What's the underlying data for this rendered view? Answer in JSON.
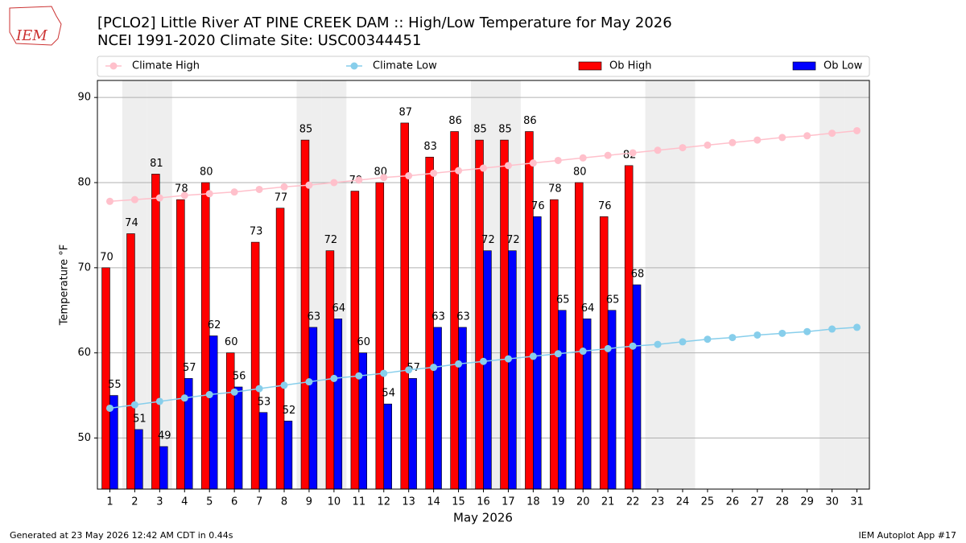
{
  "logo_text": "IEM",
  "footer_left": "Generated at 23 May 2026 12:42 AM CDT in 0.44s",
  "footer_right": "IEM Autoplot App #17",
  "chart_data": {
    "type": "bar",
    "title": "[PCLO2] Little River  AT PINE CREEK DAM :: High/Low Temperature for May 2026",
    "subtitle": "NCEI 1991-2020 Climate Site: USC00344451",
    "xlabel": "May 2026",
    "ylabel": "Temperature °F",
    "x": [
      1,
      2,
      3,
      4,
      5,
      6,
      7,
      8,
      9,
      10,
      11,
      12,
      13,
      14,
      15,
      16,
      17,
      18,
      19,
      20,
      21,
      22,
      23,
      24,
      25,
      26,
      27,
      28,
      29,
      30,
      31
    ],
    "xlim": [
      0.5,
      31.5
    ],
    "xticks": [
      1,
      2,
      3,
      4,
      5,
      6,
      7,
      8,
      9,
      10,
      11,
      12,
      13,
      14,
      15,
      16,
      17,
      18,
      19,
      20,
      21,
      22,
      23,
      24,
      25,
      26,
      27,
      28,
      29,
      30,
      31
    ],
    "ylim": [
      44,
      92
    ],
    "yticks": [
      50,
      60,
      70,
      80,
      90
    ],
    "grid": true,
    "shaded_days": [
      2,
      3,
      9,
      10,
      16,
      17,
      23,
      24,
      30,
      31
    ],
    "series": [
      {
        "name": "Climate High",
        "type": "line",
        "color": "#ffc0cb",
        "values": [
          77.8,
          78.0,
          78.2,
          78.5,
          78.7,
          78.9,
          79.2,
          79.5,
          79.7,
          80.0,
          80.3,
          80.6,
          80.8,
          81.1,
          81.4,
          81.7,
          82.0,
          82.3,
          82.6,
          82.9,
          83.2,
          83.5,
          83.8,
          84.1,
          84.4,
          84.7,
          85.0,
          85.3,
          85.5,
          85.8,
          86.1
        ]
      },
      {
        "name": "Climate Low",
        "type": "line",
        "color": "#87ceeb",
        "values": [
          53.5,
          53.9,
          54.3,
          54.7,
          55.1,
          55.4,
          55.8,
          56.2,
          56.6,
          57.0,
          57.3,
          57.6,
          58.0,
          58.3,
          58.7,
          59.0,
          59.3,
          59.6,
          59.9,
          60.2,
          60.5,
          60.8,
          61.0,
          61.3,
          61.6,
          61.8,
          62.1,
          62.3,
          62.5,
          62.8,
          63.0
        ]
      },
      {
        "name": "Ob High",
        "type": "bar",
        "color": "#ff0000",
        "values": [
          70,
          74,
          81,
          78,
          80,
          60,
          73,
          77,
          85,
          72,
          79,
          80,
          87,
          83,
          86,
          85,
          85,
          86,
          78,
          80,
          76,
          82,
          null,
          null,
          null,
          null,
          null,
          null,
          null,
          null,
          null
        ]
      },
      {
        "name": "Ob Low",
        "type": "bar",
        "color": "#0000ff",
        "values": [
          55,
          51,
          49,
          57,
          62,
          56,
          53,
          52,
          63,
          64,
          60,
          54,
          57,
          63,
          63,
          72,
          72,
          76,
          65,
          64,
          65,
          68,
          null,
          null,
          null,
          null,
          null,
          null,
          null,
          null,
          null
        ]
      }
    ]
  }
}
